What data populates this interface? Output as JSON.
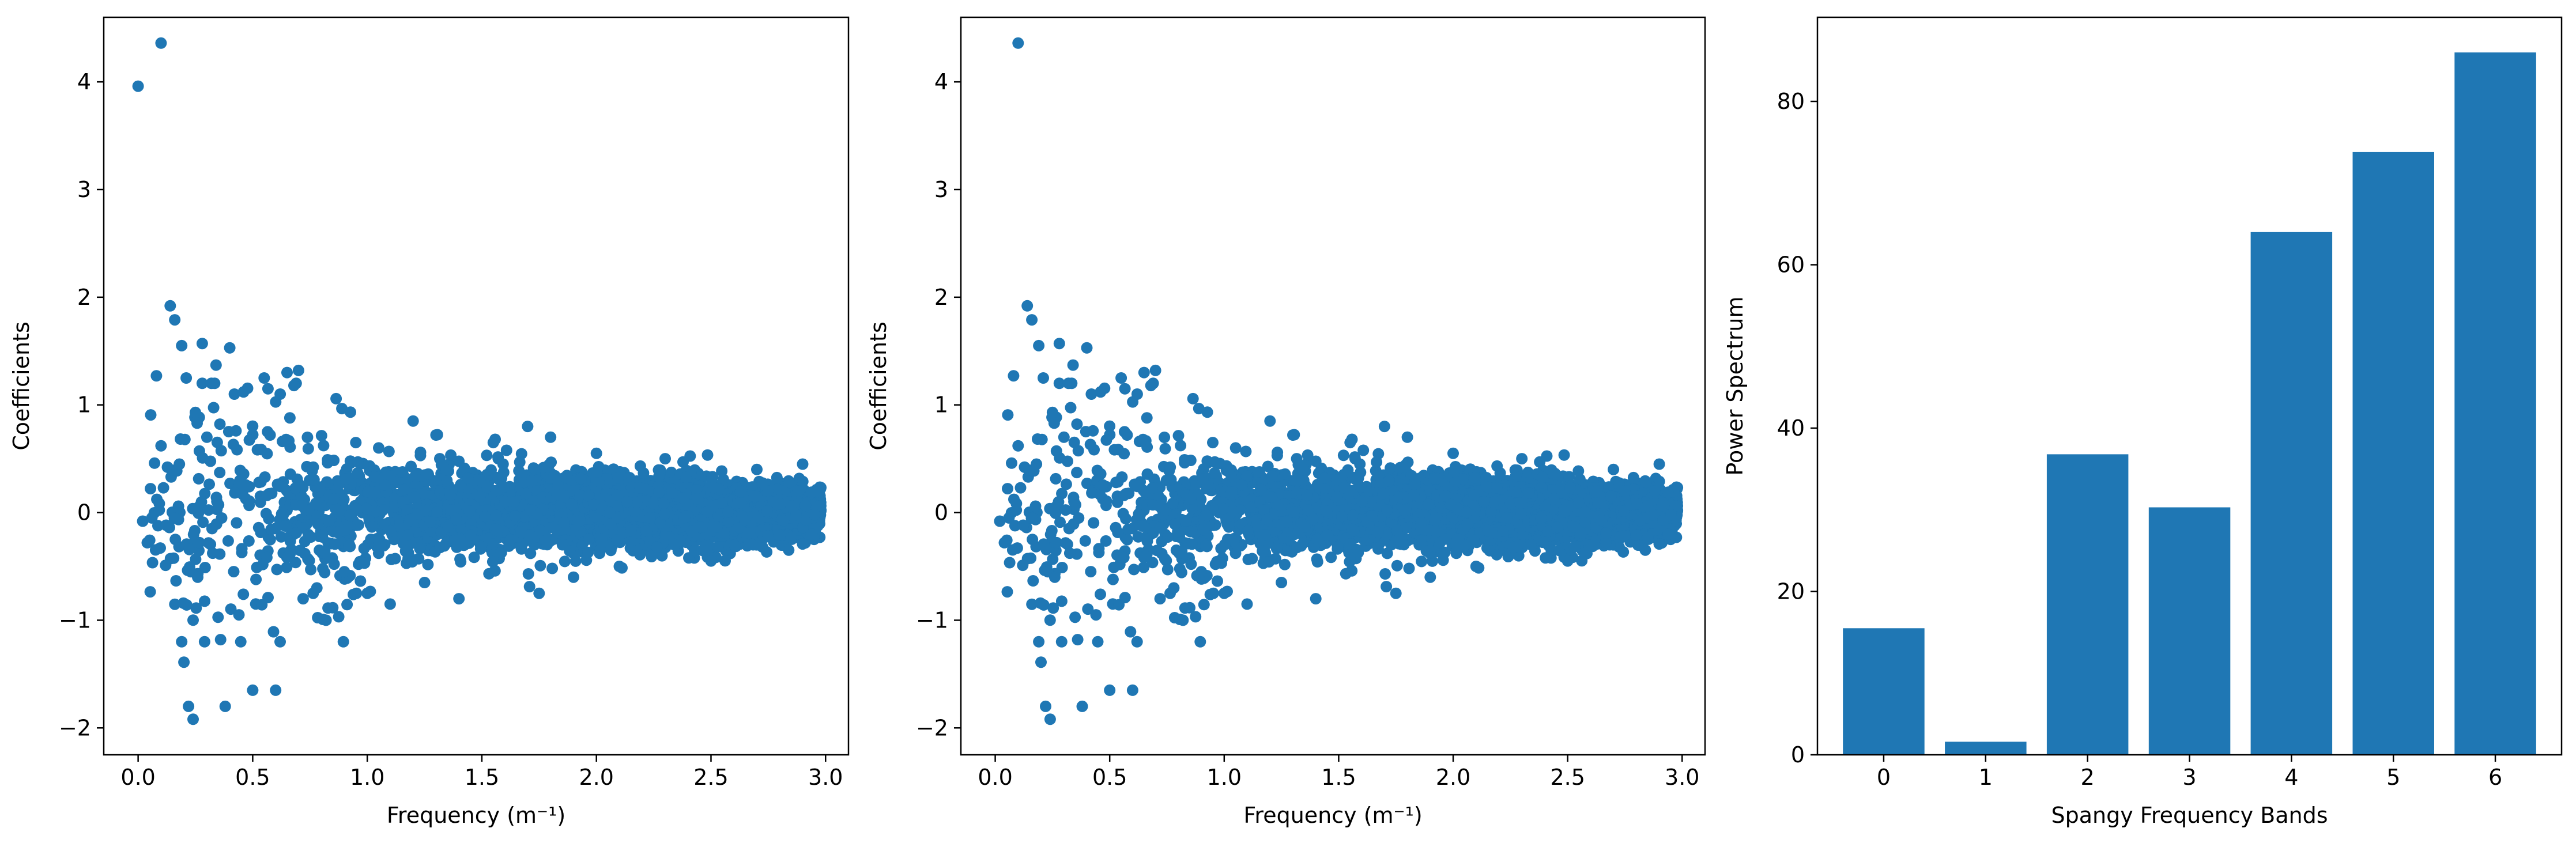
{
  "chart_data": [
    {
      "type": "scatter",
      "title": "",
      "xlabel": "Frequency (m⁻¹)",
      "ylabel": "Coefficients",
      "xlim": [
        -0.15,
        3.1
      ],
      "ylim": [
        -2.25,
        4.6
      ],
      "xticks": [
        0.0,
        0.5,
        1.0,
        1.5,
        2.0,
        2.5,
        3.0
      ],
      "xtick_labels": [
        "0.0",
        "0.5",
        "1.0",
        "1.5",
        "2.0",
        "2.5",
        "3.0"
      ],
      "yticks": [
        -2,
        -1,
        0,
        1,
        2,
        3,
        4
      ],
      "ytick_labels": [
        "−2",
        "−1",
        "0",
        "1",
        "2",
        "3",
        "4"
      ],
      "color": "#1f77b4",
      "grid": false,
      "legend": "none",
      "points": [
        [
          0.0,
          3.96
        ],
        [
          0.1,
          4.36
        ],
        [
          0.02,
          -0.08
        ],
        [
          0.04,
          -0.28
        ],
        [
          0.06,
          -0.05
        ],
        [
          0.08,
          1.27
        ],
        [
          0.1,
          0.62
        ],
        [
          0.12,
          -0.49
        ],
        [
          0.14,
          1.92
        ],
        [
          0.16,
          1.79
        ],
        [
          0.18,
          0.45
        ],
        [
          0.19,
          1.55
        ],
        [
          0.2,
          -1.39
        ],
        [
          0.21,
          1.25
        ],
        [
          0.22,
          -1.8
        ],
        [
          0.23,
          -0.55
        ],
        [
          0.24,
          -1.92
        ],
        [
          0.25,
          0.93
        ],
        [
          0.26,
          -0.6
        ],
        [
          0.28,
          1.57
        ],
        [
          0.29,
          -1.2
        ],
        [
          0.3,
          0.7
        ],
        [
          0.32,
          1.2
        ],
        [
          0.34,
          1.37
        ],
        [
          0.36,
          -1.18
        ],
        [
          0.38,
          -1.8
        ],
        [
          0.4,
          1.53
        ],
        [
          0.42,
          1.1
        ],
        [
          0.44,
          -0.95
        ],
        [
          0.46,
          1.12
        ],
        [
          0.5,
          -1.65
        ],
        [
          0.55,
          1.25
        ],
        [
          0.6,
          -1.65
        ],
        [
          0.62,
          1.1
        ],
        [
          0.65,
          1.3
        ],
        [
          0.68,
          1.18
        ],
        [
          0.7,
          1.32
        ],
        [
          0.72,
          -0.8
        ],
        [
          0.78,
          -0.7
        ],
        [
          0.82,
          -1.0
        ],
        [
          0.9,
          -0.55
        ],
        [
          0.95,
          0.65
        ],
        [
          1.0,
          -0.75
        ],
        [
          1.05,
          0.6
        ],
        [
          1.1,
          -0.85
        ],
        [
          1.2,
          0.85
        ],
        [
          1.25,
          -0.65
        ],
        [
          1.3,
          0.72
        ],
        [
          1.4,
          -0.8
        ],
        [
          1.55,
          0.65
        ],
        [
          1.7,
          0.8
        ],
        [
          1.75,
          -0.75
        ],
        [
          1.8,
          0.7
        ],
        [
          1.9,
          -0.6
        ],
        [
          2.0,
          0.55
        ],
        [
          2.1,
          -0.5
        ],
        [
          2.3,
          0.5
        ],
        [
          2.5,
          -0.45
        ],
        [
          2.7,
          0.4
        ],
        [
          2.9,
          0.45
        ]
      ]
    },
    {
      "type": "scatter",
      "title": "",
      "xlabel": "Frequency (m⁻¹)",
      "ylabel": "Coefficients",
      "xlim": [
        -0.15,
        3.1
      ],
      "ylim": [
        -2.25,
        4.6
      ],
      "xticks": [
        0.0,
        0.5,
        1.0,
        1.5,
        2.0,
        2.5,
        3.0
      ],
      "xtick_labels": [
        "0.0",
        "0.5",
        "1.0",
        "1.5",
        "2.0",
        "2.5",
        "3.0"
      ],
      "yticks": [
        -2,
        -1,
        0,
        1,
        2,
        3,
        4
      ],
      "ytick_labels": [
        "−2",
        "−1",
        "0",
        "1",
        "2",
        "3",
        "4"
      ],
      "color": "#1f77b4",
      "grid": false,
      "legend": "none",
      "points": [
        [
          0.1,
          4.36
        ],
        [
          0.02,
          -0.08
        ],
        [
          0.04,
          -0.28
        ],
        [
          0.06,
          -0.05
        ],
        [
          0.08,
          1.27
        ],
        [
          0.1,
          0.62
        ],
        [
          0.12,
          -0.49
        ],
        [
          0.14,
          1.92
        ],
        [
          0.16,
          1.79
        ],
        [
          0.18,
          0.45
        ],
        [
          0.19,
          1.55
        ],
        [
          0.2,
          -1.39
        ],
        [
          0.21,
          1.25
        ],
        [
          0.22,
          -1.8
        ],
        [
          0.23,
          -0.55
        ],
        [
          0.24,
          -1.92
        ],
        [
          0.25,
          0.93
        ],
        [
          0.26,
          -0.6
        ],
        [
          0.28,
          1.57
        ],
        [
          0.29,
          -1.2
        ],
        [
          0.3,
          0.7
        ],
        [
          0.32,
          1.2
        ],
        [
          0.34,
          1.37
        ],
        [
          0.36,
          -1.18
        ],
        [
          0.38,
          -1.8
        ],
        [
          0.4,
          1.53
        ],
        [
          0.42,
          1.1
        ],
        [
          0.44,
          -0.95
        ],
        [
          0.46,
          1.12
        ],
        [
          0.5,
          -1.65
        ],
        [
          0.55,
          1.25
        ],
        [
          0.6,
          -1.65
        ],
        [
          0.62,
          1.1
        ],
        [
          0.65,
          1.3
        ],
        [
          0.68,
          1.18
        ],
        [
          0.7,
          1.32
        ],
        [
          0.72,
          -0.8
        ],
        [
          0.78,
          -0.7
        ],
        [
          0.82,
          -1.0
        ],
        [
          0.9,
          -0.55
        ],
        [
          0.95,
          0.65
        ],
        [
          1.0,
          -0.75
        ],
        [
          1.05,
          0.6
        ],
        [
          1.1,
          -0.85
        ],
        [
          1.2,
          0.85
        ],
        [
          1.25,
          -0.65
        ],
        [
          1.3,
          0.72
        ],
        [
          1.4,
          -0.8
        ],
        [
          1.55,
          0.65
        ],
        [
          1.7,
          0.8
        ],
        [
          1.75,
          -0.75
        ],
        [
          1.8,
          0.7
        ],
        [
          1.9,
          -0.6
        ],
        [
          2.0,
          0.55
        ],
        [
          2.1,
          -0.5
        ],
        [
          2.3,
          0.5
        ],
        [
          2.5,
          -0.45
        ],
        [
          2.7,
          0.4
        ],
        [
          2.9,
          0.45
        ]
      ]
    },
    {
      "type": "bar",
      "title": "",
      "xlabel": "Spangy Frequency Bands",
      "ylabel": "Power Spectrum",
      "categories": [
        "0",
        "1",
        "2",
        "3",
        "4",
        "5",
        "6"
      ],
      "values": [
        15.5,
        1.6,
        36.8,
        30.3,
        64.0,
        73.8,
        86.0
      ],
      "xlim": [
        -0.65,
        6.65
      ],
      "ylim": [
        0,
        90.3
      ],
      "yticks": [
        0,
        20,
        40,
        60,
        80
      ],
      "ytick_labels": [
        "0",
        "20",
        "40",
        "60",
        "80"
      ],
      "color": "#1f77b4",
      "grid": false,
      "legend": "none"
    }
  ]
}
